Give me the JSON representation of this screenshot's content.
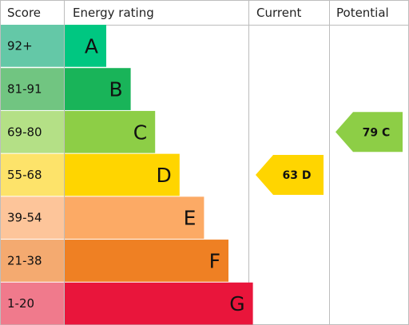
{
  "headers": {
    "score": "Score",
    "energy_rating": "Energy rating",
    "current": "Current",
    "potential": "Potential"
  },
  "chart_data": {
    "type": "bar",
    "title": "",
    "categories": [
      "A",
      "B",
      "C",
      "D",
      "E",
      "F",
      "G"
    ],
    "score_ranges": [
      "92+",
      "81-91",
      "69-80",
      "55-68",
      "39-54",
      "21-38",
      "1-20"
    ],
    "band_colors": [
      "#00c781",
      "#19b459",
      "#8dce46",
      "#ffd500",
      "#fcaa65",
      "#ef8023",
      "#e9153b"
    ],
    "score_cell_colors": [
      "#64c8a7",
      "#71c581",
      "#b4e086",
      "#fde36a",
      "#fdc59a",
      "#f4aa70",
      "#f07a8c"
    ],
    "current": {
      "value": 63,
      "band": "D",
      "label": "63 D",
      "color": "#ffd500"
    },
    "potential": {
      "value": 79,
      "band": "C",
      "label": "79 C",
      "color": "#8dce46"
    }
  }
}
